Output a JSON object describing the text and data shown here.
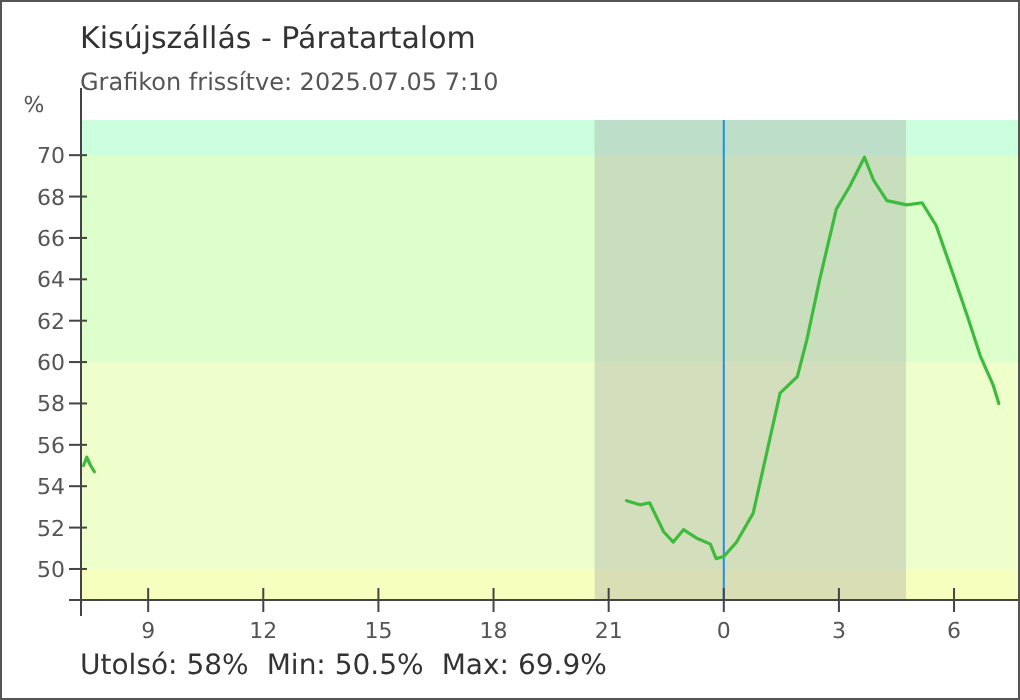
{
  "chart_data": {
    "type": "line",
    "title": "Kisújszállás - Páratartalom",
    "subtitle": "Grafikon frissítve: 2025.07.05 7:10",
    "ylabel": "%",
    "xlim": [
      "2025-07-04T07:15",
      "2025-07-05T07:40"
    ],
    "ylim": [
      48.5,
      71.7
    ],
    "xticks": [
      {
        "value": "2025-07-04T09:00",
        "label": "9"
      },
      {
        "value": "2025-07-04T12:00",
        "label": "12"
      },
      {
        "value": "2025-07-04T15:00",
        "label": "15"
      },
      {
        "value": "2025-07-04T18:00",
        "label": "18"
      },
      {
        "value": "2025-07-04T21:00",
        "label": "21"
      },
      {
        "value": "2025-07-05T00:00",
        "label": "0"
      },
      {
        "value": "2025-07-05T03:00",
        "label": "3"
      },
      {
        "value": "2025-07-05T06:00",
        "label": "6"
      }
    ],
    "yticks": [
      50,
      52,
      54,
      56,
      58,
      60,
      62,
      64,
      66,
      68,
      70
    ],
    "grid": false,
    "marker": "none",
    "line_style": "solid",
    "bands": [
      {
        "axis": "y",
        "from": 48.5,
        "to": 50,
        "color": "#f7ffbf"
      },
      {
        "axis": "y",
        "from": 50,
        "to": 60,
        "color": "#eeffcc"
      },
      {
        "axis": "y",
        "from": 60,
        "to": 70,
        "color": "#ddffcc"
      },
      {
        "axis": "y",
        "from": 70,
        "to": 71.7,
        "color": "#ccffdd"
      },
      {
        "axis": "x",
        "from": "2025-07-04T20:38",
        "to": "2025-07-05T04:45",
        "color": "#a0a0a0"
      }
    ],
    "ref_lines": [
      {
        "axis": "x",
        "value": "2025-07-05T00:00",
        "color": "#1e90e6"
      }
    ],
    "series": [
      {
        "color": "#3cba3c",
        "x": [
          "2025-07-04T07:19",
          "2025-07-04T07:24",
          "2025-07-04T07:30",
          "2025-07-04T07:36"
        ],
        "values": [
          55,
          55.4,
          55,
          54.7
        ]
      },
      {
        "color": "#3dbb3d",
        "x": [
          "2025-07-04T21:28",
          "2025-07-04T21:49",
          "2025-07-04T22:04",
          "2025-07-04T22:26",
          "2025-07-04T22:41",
          "2025-07-04T22:57",
          "2025-07-04T23:17",
          "2025-07-04T23:39",
          "2025-07-04T23:48",
          "2025-07-05T00:00",
          "2025-07-05T00:20",
          "2025-07-05T00:46",
          "2025-07-05T01:07",
          "2025-07-05T01:28",
          "2025-07-05T01:55",
          "2025-07-05T02:10",
          "2025-07-05T02:30",
          "2025-07-05T02:56",
          "2025-07-05T03:17",
          "2025-07-05T03:40",
          "2025-07-05T03:54",
          "2025-07-05T04:15",
          "2025-07-05T04:46",
          "2025-07-05T05:10",
          "2025-07-05T05:32",
          "2025-07-05T05:59",
          "2025-07-05T06:20",
          "2025-07-05T06:41",
          "2025-07-05T07:01",
          "2025-07-05T07:10"
        ],
        "values": [
          53.3,
          53.1,
          53.2,
          51.8,
          51.3,
          51.9,
          51.5,
          51.2,
          50.5,
          50.6,
          51.3,
          52.7,
          55.6,
          58.5,
          59.3,
          61.1,
          64,
          67.4,
          68.5,
          69.9,
          68.8,
          67.8,
          67.6,
          67.7,
          66.6,
          64.2,
          62.3,
          60.3,
          58.9,
          58
        ]
      }
    ],
    "annotations": [
      "Utolsó: 58%",
      "Min: 50.5%",
      "Max: 69.9%"
    ]
  }
}
